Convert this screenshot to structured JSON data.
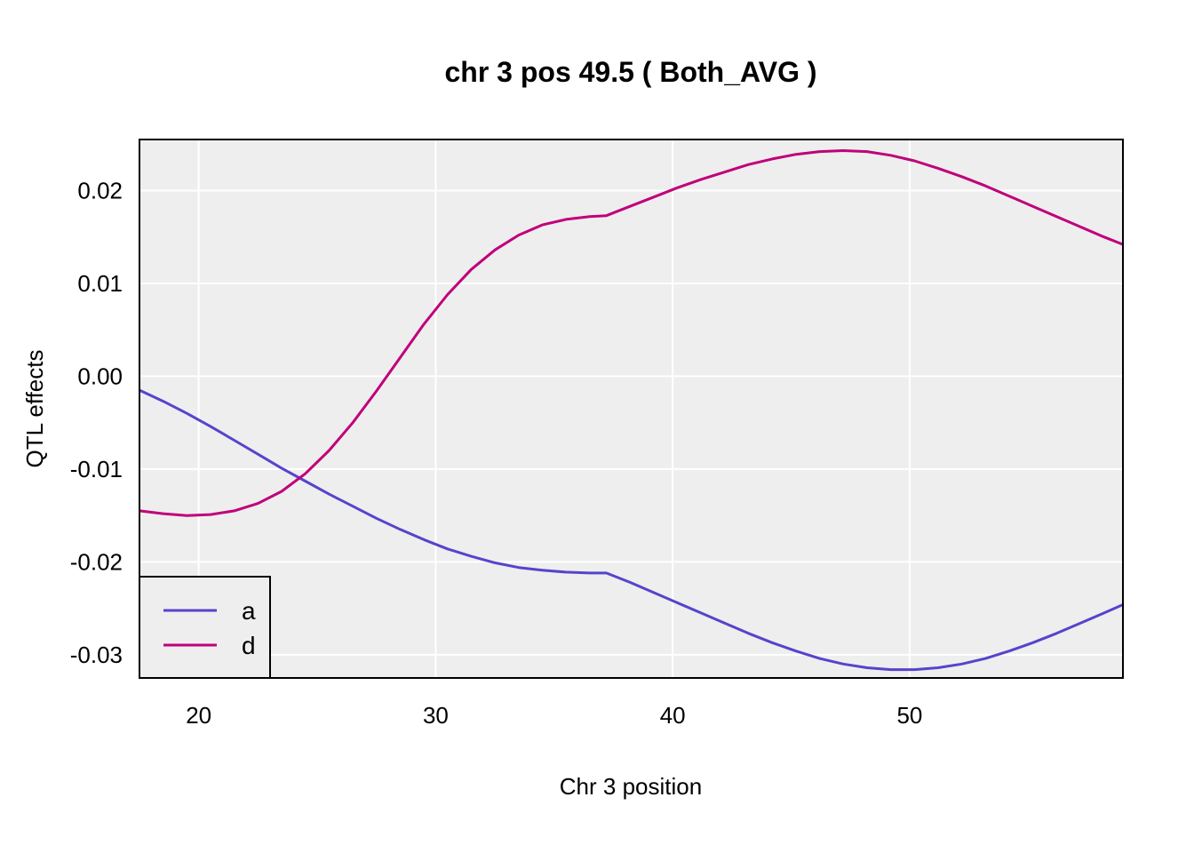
{
  "chart_data": {
    "type": "line",
    "title": "chr 3 pos 49.5 ( Both_AVG )",
    "xlabel": "Chr 3 position",
    "ylabel": "QTL effects",
    "xlim": [
      17.5,
      59
    ],
    "ylim": [
      -0.0325,
      0.0255
    ],
    "xticks": [
      20,
      30,
      40,
      50
    ],
    "xtick_labels": [
      "20",
      "30",
      "40",
      "50"
    ],
    "yticks": [
      0.02,
      0.01,
      0.0,
      -0.01,
      -0.02,
      -0.03
    ],
    "ytick_labels": [
      "0.02",
      "0.01",
      "0.00",
      "-0.01",
      "-0.02",
      "-0.03"
    ],
    "grid": true,
    "legend_position": "bottom-left",
    "background_color": "#eeeeee",
    "series": [
      {
        "name": "a",
        "color": "#5544cc",
        "x": [
          17.5,
          18.5,
          19.5,
          20.5,
          21.5,
          22.5,
          23.5,
          24.5,
          25.5,
          26.5,
          27.5,
          28.5,
          29.5,
          30.5,
          31.5,
          32.5,
          33.5,
          34.5,
          35.5,
          36.5,
          37.2,
          38.2,
          39.2,
          40.2,
          41.2,
          42.2,
          43.2,
          44.2,
          45.2,
          46.2,
          47.2,
          48.2,
          49.2,
          50.2,
          51.2,
          52.2,
          53.2,
          54.2,
          55.2,
          56.2,
          57.2,
          58.2,
          59.0
        ],
        "y": [
          -0.0015,
          -0.0027,
          -0.004,
          -0.0054,
          -0.0069,
          -0.0084,
          -0.0099,
          -0.0113,
          -0.0127,
          -0.014,
          -0.0153,
          -0.0165,
          -0.0176,
          -0.0186,
          -0.0194,
          -0.0201,
          -0.0206,
          -0.0209,
          -0.0211,
          -0.0212,
          -0.0212,
          -0.0222,
          -0.0233,
          -0.0244,
          -0.0255,
          -0.0266,
          -0.0277,
          -0.0287,
          -0.0296,
          -0.0304,
          -0.031,
          -0.0314,
          -0.0316,
          -0.0316,
          -0.0314,
          -0.031,
          -0.0304,
          -0.0296,
          -0.0287,
          -0.0277,
          -0.0266,
          -0.0255,
          -0.0246
        ]
      },
      {
        "name": "d",
        "color": "#c0007a",
        "x": [
          17.5,
          18.5,
          19.5,
          20.5,
          21.5,
          22.5,
          23.5,
          24.5,
          25.5,
          26.5,
          27.5,
          28.5,
          29.5,
          30.5,
          31.5,
          32.5,
          33.5,
          34.5,
          35.5,
          36.5,
          37.2,
          38.2,
          39.2,
          40.2,
          41.2,
          42.2,
          43.2,
          44.2,
          45.2,
          46.2,
          47.2,
          48.2,
          49.2,
          50.2,
          51.2,
          52.2,
          53.2,
          54.2,
          55.2,
          56.2,
          57.2,
          58.2,
          59.0
        ],
        "y": [
          -0.0145,
          -0.0148,
          -0.015,
          -0.0149,
          -0.0145,
          -0.0137,
          -0.0124,
          -0.0105,
          -0.008,
          -0.005,
          -0.0016,
          0.002,
          0.0056,
          0.0088,
          0.0115,
          0.0136,
          0.0152,
          0.0163,
          0.0169,
          0.0172,
          0.0173,
          0.0183,
          0.0193,
          0.0203,
          0.0212,
          0.022,
          0.0228,
          0.0234,
          0.0239,
          0.0242,
          0.0243,
          0.0242,
          0.0238,
          0.0232,
          0.0224,
          0.0215,
          0.0205,
          0.0194,
          0.0183,
          0.0172,
          0.0161,
          0.015,
          0.0142
        ]
      }
    ]
  }
}
